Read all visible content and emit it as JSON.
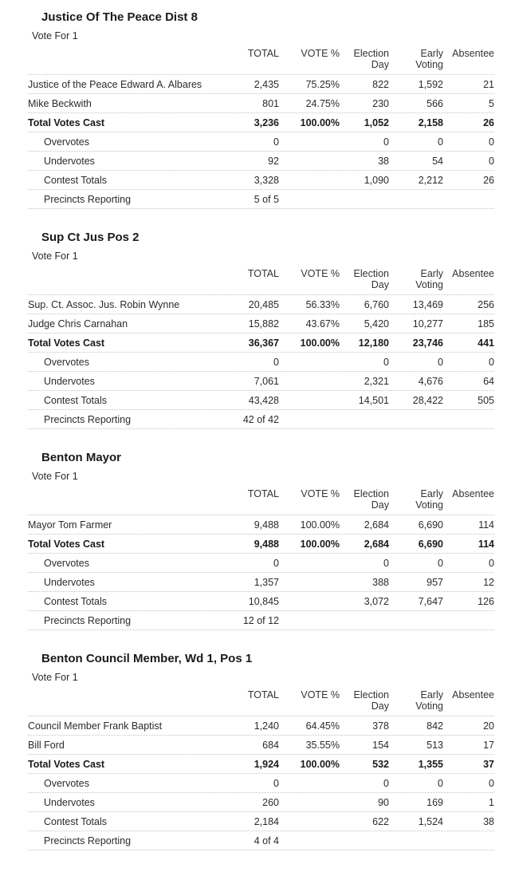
{
  "columns": [
    "TOTAL",
    "VOTE %",
    "Election\nDay",
    "Early\nVoting",
    "Absentee"
  ],
  "contests": [
    {
      "title": "Justice Of The Peace Dist 8",
      "vote_for": "Vote For 1",
      "rows": [
        {
          "label": "Justice of the Peace Edward A. Albares",
          "style": "candidate",
          "cells": [
            "2,435",
            "75.25%",
            "822",
            "1,592",
            "21"
          ]
        },
        {
          "label": "Mike Beckwith",
          "style": "candidate",
          "cells": [
            "801",
            "24.75%",
            "230",
            "566",
            "5"
          ]
        },
        {
          "label": "Total Votes Cast",
          "style": "total",
          "cells": [
            "3,236",
            "100.00%",
            "1,052",
            "2,158",
            "26"
          ]
        },
        {
          "label": "Overvotes",
          "style": "sub",
          "cells": [
            "0",
            "",
            "0",
            "0",
            "0"
          ]
        },
        {
          "label": "Undervotes",
          "style": "sub",
          "cells": [
            "92",
            "",
            "38",
            "54",
            "0"
          ]
        },
        {
          "label": "Contest Totals",
          "style": "sub",
          "cells": [
            "3,328",
            "",
            "1,090",
            "2,212",
            "26"
          ]
        },
        {
          "label": "Precincts Reporting",
          "style": "sub",
          "cells": [
            "5 of 5",
            "",
            "",
            "",
            ""
          ]
        }
      ]
    },
    {
      "title": "Sup Ct Jus Pos 2",
      "vote_for": "Vote For 1",
      "rows": [
        {
          "label": "Sup. Ct. Assoc. Jus. Robin Wynne",
          "style": "candidate",
          "cells": [
            "20,485",
            "56.33%",
            "6,760",
            "13,469",
            "256"
          ]
        },
        {
          "label": "Judge Chris Carnahan",
          "style": "candidate",
          "cells": [
            "15,882",
            "43.67%",
            "5,420",
            "10,277",
            "185"
          ]
        },
        {
          "label": "Total Votes Cast",
          "style": "total",
          "cells": [
            "36,367",
            "100.00%",
            "12,180",
            "23,746",
            "441"
          ]
        },
        {
          "label": "Overvotes",
          "style": "sub",
          "cells": [
            "0",
            "",
            "0",
            "0",
            "0"
          ]
        },
        {
          "label": "Undervotes",
          "style": "sub",
          "cells": [
            "7,061",
            "",
            "2,321",
            "4,676",
            "64"
          ]
        },
        {
          "label": "Contest Totals",
          "style": "sub",
          "cells": [
            "43,428",
            "",
            "14,501",
            "28,422",
            "505"
          ]
        },
        {
          "label": "Precincts Reporting",
          "style": "sub",
          "cells": [
            "42 of 42",
            "",
            "",
            "",
            ""
          ]
        }
      ]
    },
    {
      "title": "Benton Mayor",
      "vote_for": "Vote For 1",
      "rows": [
        {
          "label": "Mayor Tom Farmer",
          "style": "candidate",
          "cells": [
            "9,488",
            "100.00%",
            "2,684",
            "6,690",
            "114"
          ]
        },
        {
          "label": "Total Votes Cast",
          "style": "total",
          "cells": [
            "9,488",
            "100.00%",
            "2,684",
            "6,690",
            "114"
          ]
        },
        {
          "label": "Overvotes",
          "style": "sub",
          "cells": [
            "0",
            "",
            "0",
            "0",
            "0"
          ]
        },
        {
          "label": "Undervotes",
          "style": "sub",
          "cells": [
            "1,357",
            "",
            "388",
            "957",
            "12"
          ]
        },
        {
          "label": "Contest Totals",
          "style": "sub",
          "cells": [
            "10,845",
            "",
            "3,072",
            "7,647",
            "126"
          ]
        },
        {
          "label": "Precincts Reporting",
          "style": "sub",
          "cells": [
            "12 of 12",
            "",
            "",
            "",
            ""
          ]
        }
      ]
    },
    {
      "title": "Benton Council Member, Wd 1, Pos 1",
      "vote_for": "Vote For 1",
      "rows": [
        {
          "label": "Council Member Frank Baptist",
          "style": "candidate",
          "cells": [
            "1,240",
            "64.45%",
            "378",
            "842",
            "20"
          ]
        },
        {
          "label": "Bill Ford",
          "style": "candidate",
          "cells": [
            "684",
            "35.55%",
            "154",
            "513",
            "17"
          ]
        },
        {
          "label": "Total Votes Cast",
          "style": "total",
          "cells": [
            "1,924",
            "100.00%",
            "532",
            "1,355",
            "37"
          ]
        },
        {
          "label": "Overvotes",
          "style": "sub",
          "cells": [
            "0",
            "",
            "0",
            "0",
            "0"
          ]
        },
        {
          "label": "Undervotes",
          "style": "sub",
          "cells": [
            "260",
            "",
            "90",
            "169",
            "1"
          ]
        },
        {
          "label": "Contest Totals",
          "style": "sub",
          "cells": [
            "2,184",
            "",
            "622",
            "1,524",
            "38"
          ]
        },
        {
          "label": "Precincts Reporting",
          "style": "sub",
          "cells": [
            "4 of 4",
            "",
            "",
            "",
            ""
          ]
        }
      ]
    }
  ]
}
